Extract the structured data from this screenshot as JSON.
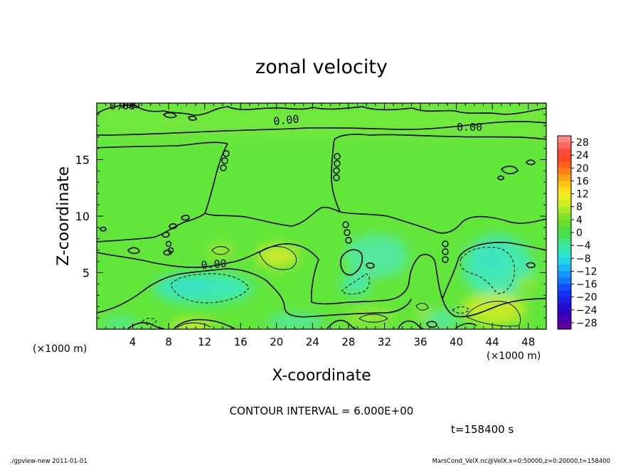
{
  "chart_data": {
    "type": "heatmap",
    "title": "zonal velocity",
    "xlabel": "X-coordinate",
    "ylabel": "Z-coordinate",
    "x_unit": "(×1000 m)",
    "y_unit": "(×1000 m)",
    "xlim": [
      0,
      50
    ],
    "ylim": [
      0,
      20
    ],
    "x_ticks": [
      "4",
      "8",
      "12",
      "16",
      "20",
      "24",
      "28",
      "32",
      "36",
      "40",
      "44",
      "48"
    ],
    "y_ticks": [
      "5",
      "10",
      "15"
    ],
    "contour_label": "0.00",
    "contour_interval_text": "CONTOUR INTERVAL = 6.000E+00",
    "time_text": "t=158400 s",
    "colorbar": {
      "ticks": [
        "28",
        "24",
        "20",
        "16",
        "12",
        "8",
        "4",
        "0",
        "−4",
        "−8",
        "−12",
        "−16",
        "−20",
        "−24",
        "−28"
      ],
      "range": [
        -30,
        30
      ],
      "step": 2
    },
    "colors": {
      "background_field": "#62e63a",
      "positive_patch": "#c8ea2a",
      "negative_patch": "#3ee8b4"
    }
  },
  "footer": {
    "left": "./gpview-new  2011-01-01",
    "right": "MarsCond_VelX.nc@VelX,x=0:50000,z=0:20000,t=158400"
  }
}
